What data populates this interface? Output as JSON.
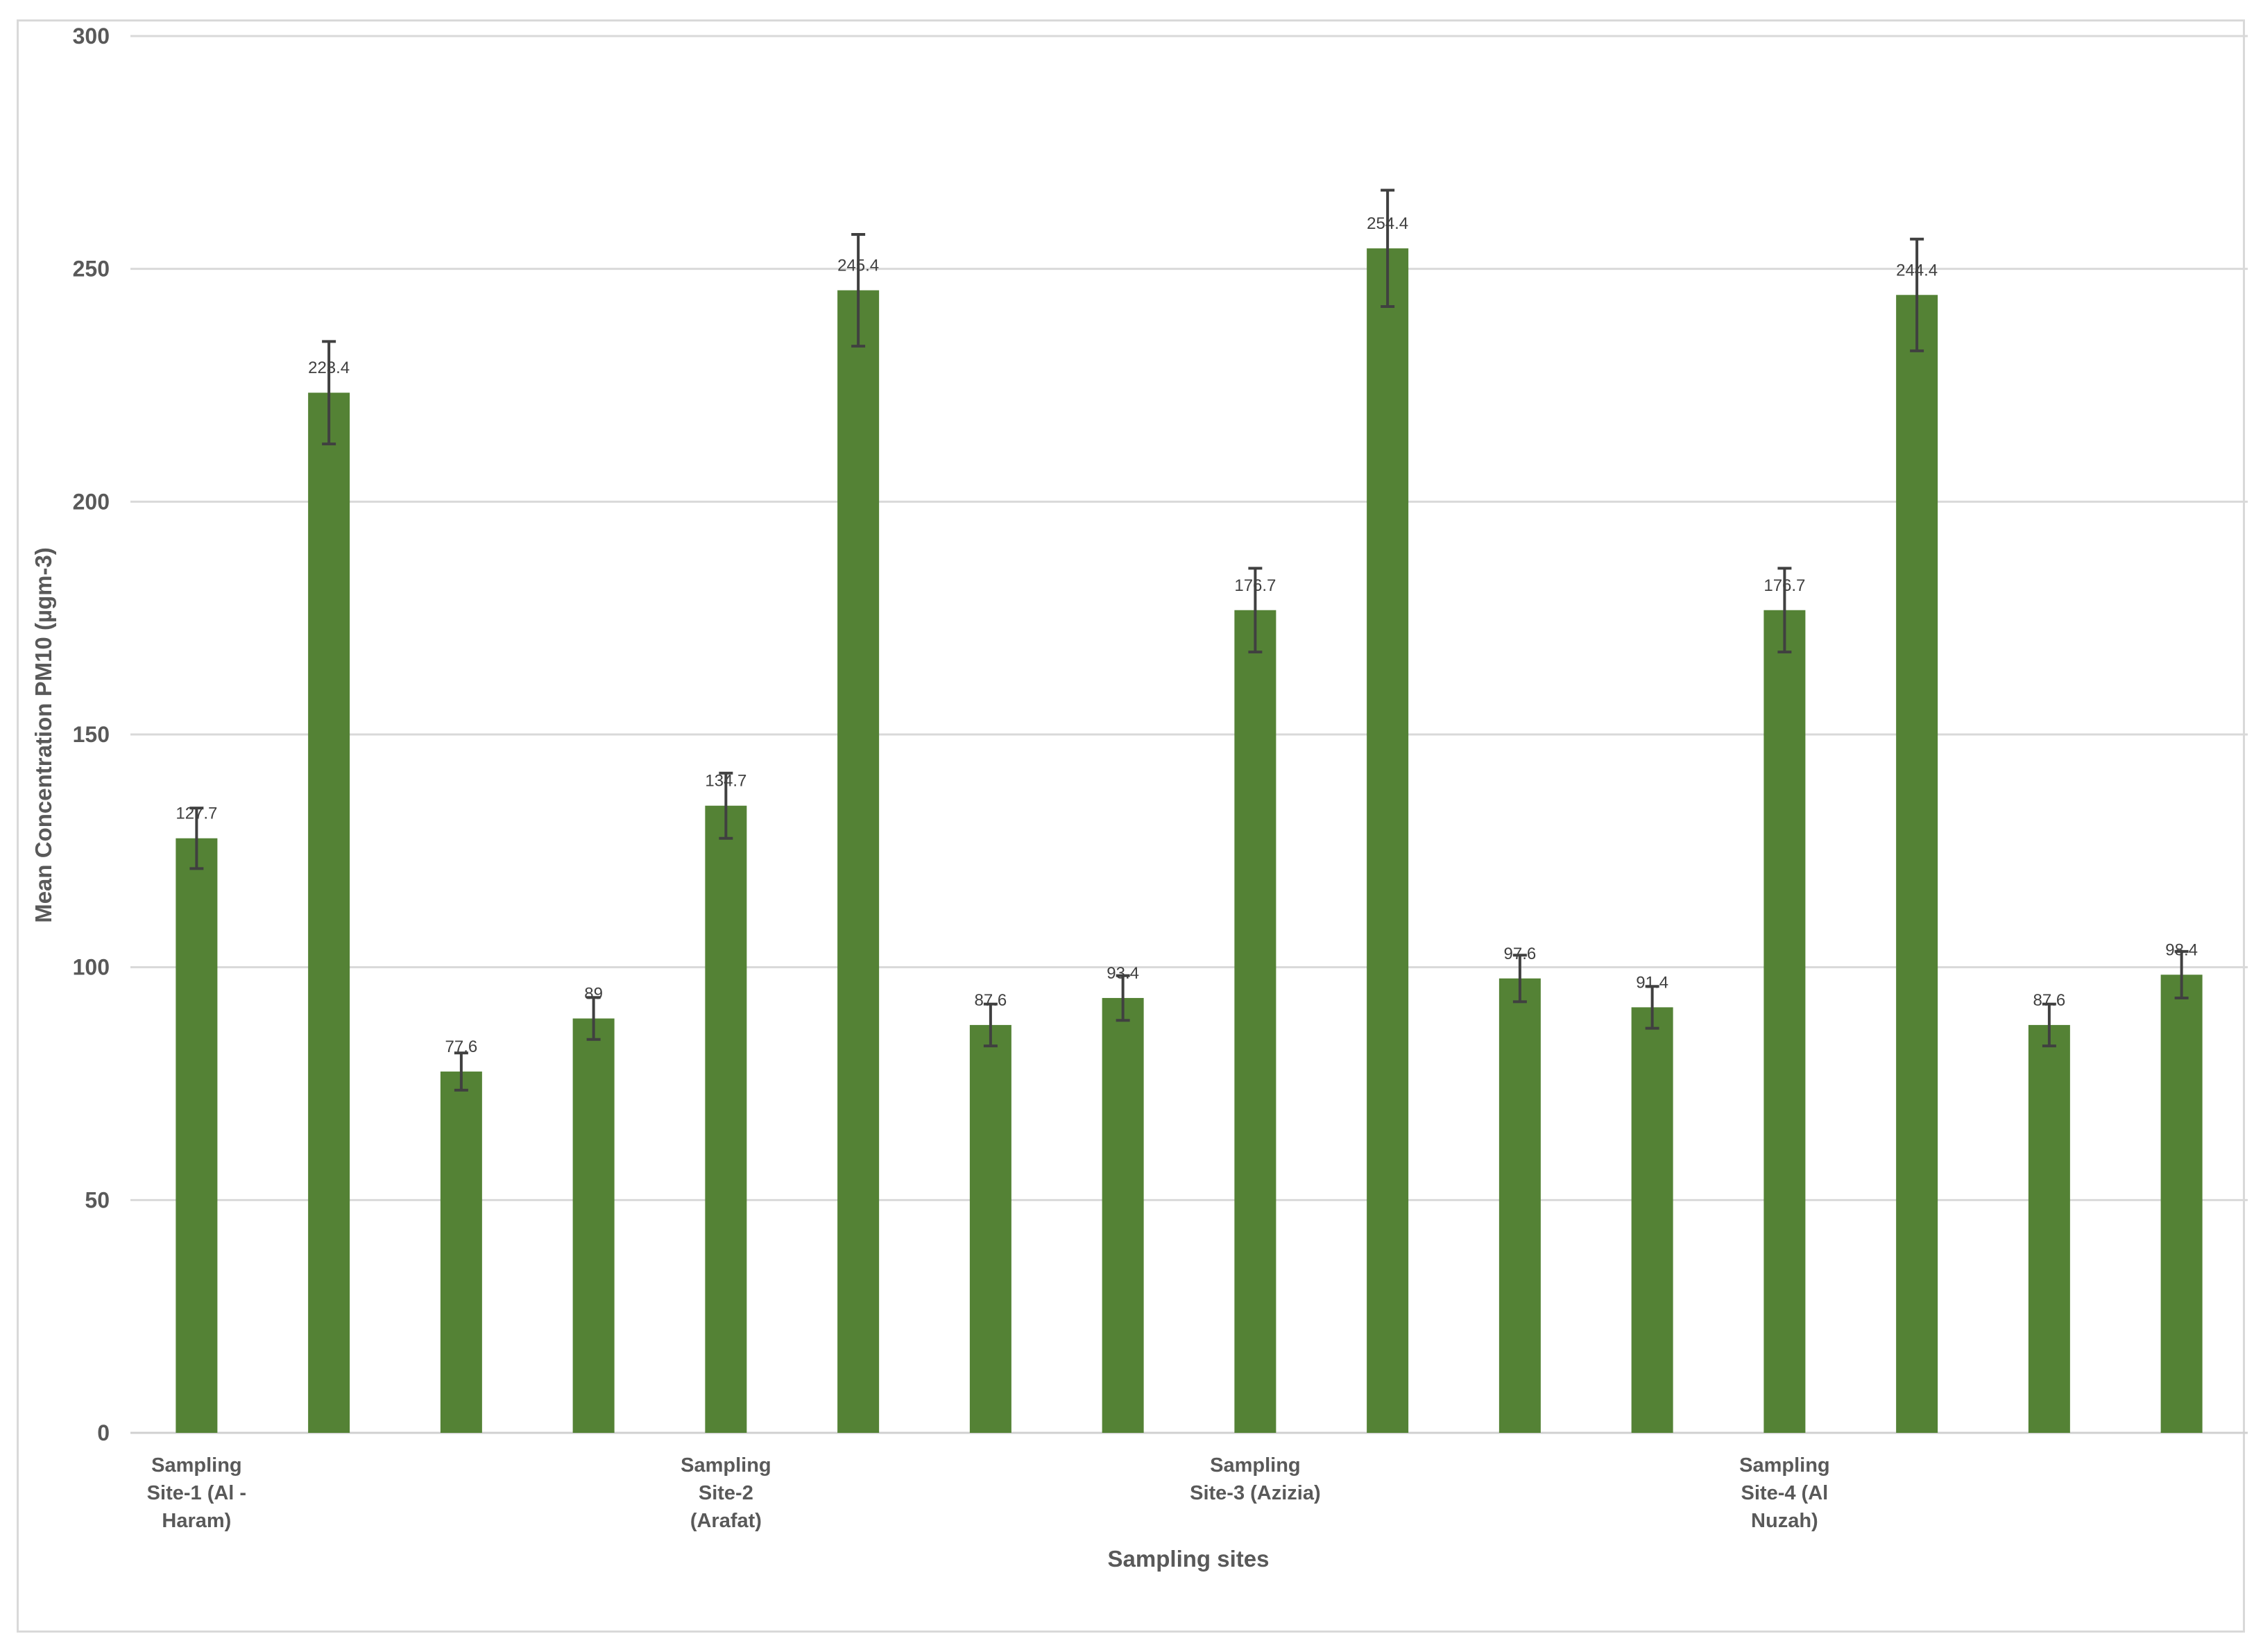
{
  "chart_data": {
    "type": "bar",
    "title": "",
    "xlabel": "Sampling sites",
    "ylabel": "Mean Concentration PM10  (µgm-3)",
    "ylim": [
      0,
      300
    ],
    "yticks": [
      0,
      50,
      100,
      150,
      200,
      250,
      300
    ],
    "grid": true,
    "legend": "none",
    "bar_color": "#548235",
    "error_color": "#404040",
    "category_labels": [
      {
        "lines": [
          "Sampling",
          "Site-1 (Al -",
          "Haram)"
        ],
        "bar_index": 0
      },
      {
        "lines": [
          "Sampling",
          "Site-2",
          "(Arafat)"
        ],
        "bar_index": 4
      },
      {
        "lines": [
          "Sampling",
          "Site-3 (Azizia)"
        ],
        "bar_index": 8
      },
      {
        "lines": [
          "Sampling",
          "Site-4 (Al",
          "Nuzah)"
        ],
        "bar_index": 12
      }
    ],
    "values": [
      127.7,
      223.4,
      77.6,
      89,
      134.7,
      245.4,
      87.6,
      93.4,
      176.7,
      254.4,
      97.6,
      91.4,
      176.7,
      244.4,
      87.6,
      98.4
    ],
    "labels": [
      "127.7",
      "223.4",
      "77.6",
      "89",
      "134.7",
      "245.4",
      "87.6",
      "93.4",
      "176.7",
      "254.4",
      "97.6",
      "91.4",
      "176.7",
      "244.4",
      "87.6",
      "98.4"
    ],
    "errors": [
      6.5,
      11,
      4,
      4.5,
      7,
      12,
      4.5,
      4.8,
      9,
      12.5,
      5,
      4.5,
      9,
      12,
      4.5,
      5
    ]
  }
}
